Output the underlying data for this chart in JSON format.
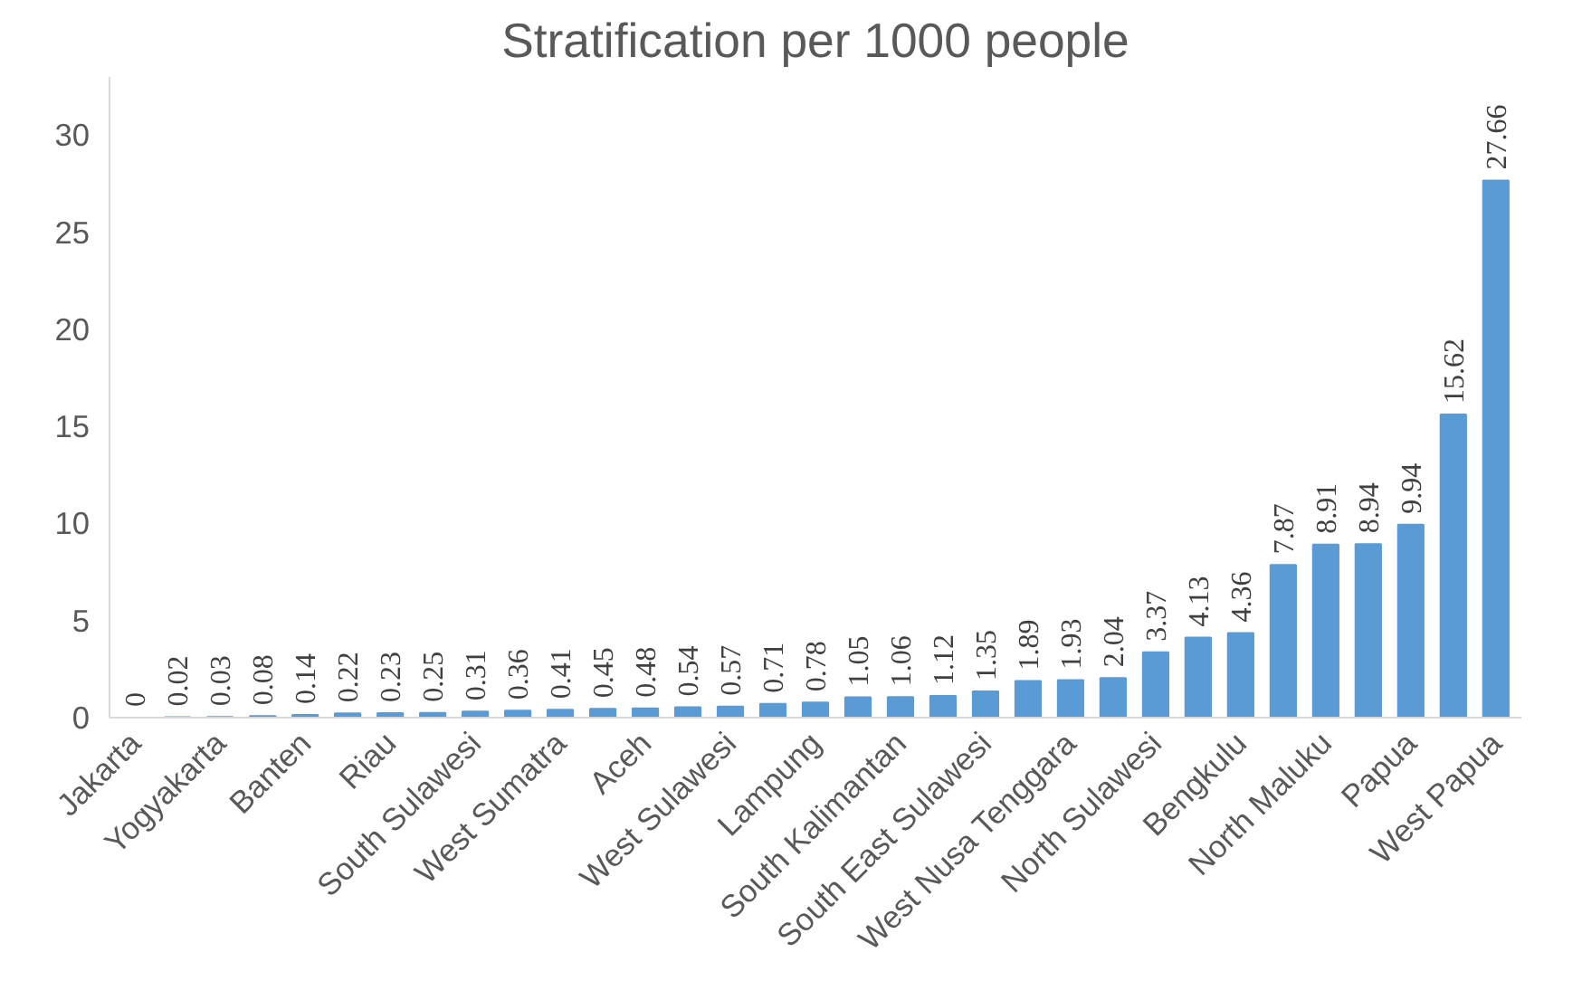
{
  "chart_data": {
    "type": "bar",
    "title": "Stratification per 1000 people",
    "categories": [
      "Jakarta",
      null,
      "Yogyakarta",
      null,
      "Banten",
      null,
      "Riau",
      null,
      "South Sulawesi",
      null,
      "West Sumatra",
      null,
      "Aceh",
      null,
      "West Sulawesi",
      null,
      "Lampung",
      null,
      "South Kalimantan",
      null,
      "South East Sulawesi",
      null,
      "West Nusa Tenggara",
      null,
      "North Sulawesi",
      null,
      "Bengkulu",
      null,
      "North Maluku",
      null,
      "Papua",
      null,
      "West Papua"
    ],
    "values": [
      0,
      0.02,
      0.03,
      0.08,
      0.14,
      0.22,
      0.23,
      0.25,
      0.31,
      0.36,
      0.41,
      0.45,
      0.48,
      0.54,
      0.57,
      0.71,
      0.78,
      1.05,
      1.06,
      1.12,
      1.35,
      1.89,
      1.93,
      2.04,
      3.37,
      4.13,
      4.36,
      7.87,
      8.91,
      8.94,
      9.94,
      15.62,
      27.66
    ],
    "color": "#5b9bd5",
    "ylim": [
      0,
      33
    ],
    "yticks": [
      0,
      5,
      10,
      15,
      20,
      25,
      30
    ],
    "grid": false,
    "data_labels": true
  }
}
